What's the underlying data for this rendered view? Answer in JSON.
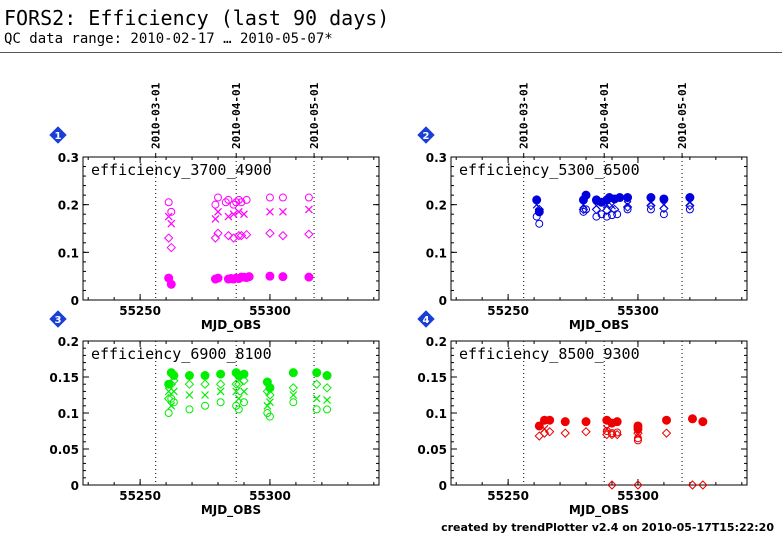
{
  "header": {
    "title": "FORS2: Efficiency (last 90 days)",
    "range": "QC data range: 2010-02-17 … 2010-05-07*"
  },
  "footer": "created by trendPlotter v2.4 on 2010-05-17T15:22:20",
  "date_labels": [
    "2010-03-01",
    "2010-04-01",
    "2010-05-01"
  ],
  "chart_data": [
    {
      "type": "scatter",
      "panel_number": "1",
      "title": "efficiency_3700_4900",
      "xlabel": "MJD_OBS",
      "color": "#ff00ff",
      "xlim": [
        55228,
        55342
      ],
      "ylim": [
        0,
        0.3
      ],
      "xticks": [
        "55250",
        "55300"
      ],
      "yticks": [
        "0",
        "0.1",
        "0.2",
        "0.3"
      ],
      "date_x": [
        55256,
        55287,
        55317
      ],
      "series": [
        {
          "marker": "filled-circle",
          "points": [
            [
              55261,
              0.046
            ],
            [
              55262,
              0.033
            ],
            [
              55279,
              0.044
            ],
            [
              55280,
              0.046
            ],
            [
              55284,
              0.044
            ],
            [
              55285,
              0.045
            ],
            [
              55286,
              0.044
            ],
            [
              55287,
              0.046
            ],
            [
              55288,
              0.045
            ],
            [
              55289,
              0.048
            ],
            [
              55290,
              0.048
            ],
            [
              55291,
              0.047
            ],
            [
              55292,
              0.049
            ],
            [
              55300,
              0.05
            ],
            [
              55305,
              0.049
            ],
            [
              55315,
              0.048
            ]
          ]
        },
        {
          "marker": "open-circle",
          "points": [
            [
              55261,
              0.205
            ],
            [
              55262,
              0.185
            ],
            [
              55279,
              0.2
            ],
            [
              55280,
              0.215
            ],
            [
              55283,
              0.205
            ],
            [
              55284,
              0.21
            ],
            [
              55286,
              0.2
            ],
            [
              55287,
              0.205
            ],
            [
              55288,
              0.21
            ],
            [
              55289,
              0.205
            ],
            [
              55291,
              0.21
            ],
            [
              55300,
              0.215
            ],
            [
              55305,
              0.215
            ],
            [
              55315,
              0.215
            ]
          ]
        },
        {
          "marker": "cross",
          "points": [
            [
              55261,
              0.175
            ],
            [
              55262,
              0.16
            ],
            [
              55279,
              0.17
            ],
            [
              55280,
              0.185
            ],
            [
              55284,
              0.175
            ],
            [
              55286,
              0.18
            ],
            [
              55288,
              0.185
            ],
            [
              55290,
              0.18
            ],
            [
              55300,
              0.185
            ],
            [
              55305,
              0.185
            ],
            [
              55315,
              0.19
            ]
          ]
        },
        {
          "marker": "diamond",
          "points": [
            [
              55261,
              0.13
            ],
            [
              55262,
              0.11
            ],
            [
              55279,
              0.13
            ],
            [
              55280,
              0.14
            ],
            [
              55284,
              0.135
            ],
            [
              55286,
              0.13
            ],
            [
              55288,
              0.135
            ],
            [
              55289,
              0.135
            ],
            [
              55291,
              0.137
            ],
            [
              55300,
              0.14
            ],
            [
              55305,
              0.135
            ],
            [
              55315,
              0.138
            ]
          ]
        }
      ]
    },
    {
      "type": "scatter",
      "panel_number": "2",
      "title": "efficiency_5300_6500",
      "xlabel": "MJD_OBS",
      "color": "#0000dd",
      "xlim": [
        55228,
        55342
      ],
      "ylim": [
        0,
        0.3
      ],
      "xticks": [
        "55250",
        "55300"
      ],
      "yticks": [
        "0",
        "0.1",
        "0.2",
        "0.3"
      ],
      "date_x": [
        55256,
        55287,
        55317
      ],
      "series": [
        {
          "marker": "filled-circle",
          "points": [
            [
              55261,
              0.21
            ],
            [
              55262,
              0.185
            ],
            [
              55279,
              0.21
            ],
            [
              55280,
              0.22
            ],
            [
              55284,
              0.21
            ],
            [
              55286,
              0.205
            ],
            [
              55288,
              0.21
            ],
            [
              55289,
              0.215
            ],
            [
              55291,
              0.212
            ],
            [
              55293,
              0.215
            ],
            [
              55296,
              0.215
            ],
            [
              55305,
              0.215
            ],
            [
              55310,
              0.212
            ],
            [
              55320,
              0.215
            ]
          ]
        },
        {
          "marker": "open-circle",
          "points": [
            [
              55261,
              0.175
            ],
            [
              55262,
              0.16
            ],
            [
              55279,
              0.185
            ],
            [
              55280,
              0.19
            ],
            [
              55284,
              0.175
            ],
            [
              55286,
              0.18
            ],
            [
              55288,
              0.175
            ],
            [
              55290,
              0.178
            ],
            [
              55292,
              0.18
            ],
            [
              55296,
              0.19
            ],
            [
              55305,
              0.19
            ],
            [
              55310,
              0.18
            ],
            [
              55320,
              0.19
            ]
          ]
        },
        {
          "marker": "cross",
          "points": [
            [
              55261,
              0.2
            ],
            [
              55279,
              0.2
            ],
            [
              55284,
              0.198
            ],
            [
              55288,
              0.2
            ],
            [
              55290,
              0.198
            ],
            [
              55296,
              0.2
            ],
            [
              55305,
              0.205
            ],
            [
              55310,
              0.2
            ],
            [
              55320,
              0.205
            ]
          ]
        },
        {
          "marker": "diamond",
          "points": [
            [
              55262,
              0.19
            ],
            [
              55279,
              0.19
            ],
            [
              55284,
              0.19
            ],
            [
              55288,
              0.188
            ],
            [
              55291,
              0.19
            ],
            [
              55296,
              0.195
            ],
            [
              55305,
              0.198
            ],
            [
              55310,
              0.192
            ],
            [
              55320,
              0.198
            ]
          ]
        }
      ]
    },
    {
      "type": "scatter",
      "panel_number": "3",
      "title": "efficiency_6900_8100",
      "xlabel": "MJD_OBS",
      "color": "#00ee00",
      "xlim": [
        55228,
        55342
      ],
      "ylim": [
        0,
        0.2
      ],
      "xticks": [
        "55250",
        "55300"
      ],
      "yticks": [
        "0",
        "0.05",
        "0.1",
        "0.15",
        "0.2"
      ],
      "date_x": [
        55256,
        55287,
        55317
      ],
      "series": [
        {
          "marker": "filled-circle",
          "points": [
            [
              55261,
              0.14
            ],
            [
              55262,
              0.156
            ],
            [
              55263,
              0.152
            ],
            [
              55269,
              0.152
            ],
            [
              55275,
              0.152
            ],
            [
              55281,
              0.154
            ],
            [
              55287,
              0.156
            ],
            [
              55288,
              0.152
            ],
            [
              55290,
              0.154
            ],
            [
              55299,
              0.143
            ],
            [
              55300,
              0.135
            ],
            [
              55309,
              0.156
            ],
            [
              55318,
              0.156
            ],
            [
              55322,
              0.152
            ]
          ]
        },
        {
          "marker": "open-circle",
          "points": [
            [
              55261,
              0.1
            ],
            [
              55262,
              0.12
            ],
            [
              55263,
              0.115
            ],
            [
              55269,
              0.105
            ],
            [
              55275,
              0.11
            ],
            [
              55281,
              0.115
            ],
            [
              55287,
              0.11
            ],
            [
              55288,
              0.105
            ],
            [
              55290,
              0.115
            ],
            [
              55299,
              0.1
            ],
            [
              55300,
              0.095
            ],
            [
              55309,
              0.115
            ],
            [
              55318,
              0.105
            ],
            [
              55322,
              0.105
            ]
          ]
        },
        {
          "marker": "cross",
          "points": [
            [
              55261,
              0.13
            ],
            [
              55262,
              0.11
            ],
            [
              55263,
              0.13
            ],
            [
              55269,
              0.125
            ],
            [
              55275,
              0.125
            ],
            [
              55281,
              0.13
            ],
            [
              55287,
              0.13
            ],
            [
              55288,
              0.12
            ],
            [
              55290,
              0.13
            ],
            [
              55299,
              0.11
            ],
            [
              55300,
              0.115
            ],
            [
              55309,
              0.125
            ],
            [
              55318,
              0.12
            ],
            [
              55322,
              0.118
            ]
          ]
        },
        {
          "marker": "diamond",
          "points": [
            [
              55261,
              0.12
            ],
            [
              55262,
              0.14
            ],
            [
              55263,
              0.145
            ],
            [
              55269,
              0.14
            ],
            [
              55275,
              0.14
            ],
            [
              55281,
              0.14
            ],
            [
              55287,
              0.14
            ],
            [
              55288,
              0.14
            ],
            [
              55290,
              0.145
            ],
            [
              55299,
              0.13
            ],
            [
              55300,
              0.125
            ],
            [
              55309,
              0.135
            ],
            [
              55318,
              0.14
            ],
            [
              55322,
              0.135
            ]
          ]
        }
      ]
    },
    {
      "type": "scatter",
      "panel_number": "4",
      "title": "efficiency_8500_9300",
      "xlabel": "MJD_OBS",
      "color": "#ee0000",
      "xlim": [
        55228,
        55342
      ],
      "ylim": [
        0,
        0.2
      ],
      "xticks": [
        "55250",
        "55300"
      ],
      "yticks": [
        "0",
        "0.05",
        "0.1",
        "0.15",
        "0.2"
      ],
      "date_x": [
        55256,
        55287,
        55317
      ],
      "series": [
        {
          "marker": "filled-circle",
          "points": [
            [
              55262,
              0.082
            ],
            [
              55264,
              0.09
            ],
            [
              55266,
              0.09
            ],
            [
              55272,
              0.088
            ],
            [
              55280,
              0.088
            ],
            [
              55288,
              0.09
            ],
            [
              55290,
              0.086
            ],
            [
              55292,
              0.088
            ],
            [
              55300,
              0.082
            ],
            [
              55300,
              0.078
            ],
            [
              55311,
              0.09
            ],
            [
              55321,
              0.092
            ],
            [
              55325,
              0.088
            ]
          ]
        },
        {
          "marker": "open-circle",
          "points": [
            [
              55288,
              0.075
            ],
            [
              55290,
              0.072
            ],
            [
              55292,
              0.073
            ],
            [
              55300,
              0.062
            ],
            [
              55300,
              0.065
            ]
          ]
        },
        {
          "marker": "cross",
          "points": [
            [
              55264,
              0.078
            ],
            [
              55288,
              0.078
            ],
            [
              55300,
              0.07
            ]
          ]
        },
        {
          "marker": "diamond",
          "points": [
            [
              55262,
              0.068
            ],
            [
              55264,
              0.072
            ],
            [
              55266,
              0.074
            ],
            [
              55272,
              0.072
            ],
            [
              55280,
              0.074
            ],
            [
              55288,
              0.07
            ],
            [
              55290,
              0.07
            ],
            [
              55292,
              0.07
            ],
            [
              55300,
              0.072
            ],
            [
              55311,
              0.072
            ],
            [
              55290,
              0.0
            ],
            [
              55300,
              0.0
            ],
            [
              55321,
              0.0
            ],
            [
              55325,
              0.0
            ]
          ]
        }
      ]
    }
  ]
}
